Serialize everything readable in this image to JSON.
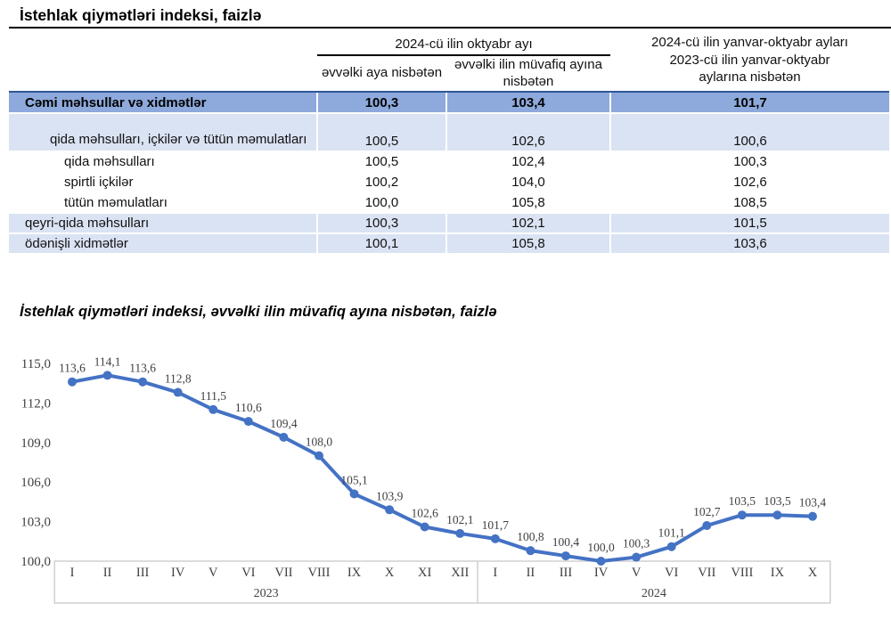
{
  "page": {
    "title": "İstehlak qiymətləri indeksi, faizlə"
  },
  "table": {
    "col_group_header": "2024-cü ilin oktyabr ayı",
    "col2_header": "əvvəlki aya nisbətən",
    "col3_header": "əvvəlki ilin müvafiq ayına nisbətən",
    "col4_header_lines": [
      "2024-cü ilin yanvar-oktyabr ayları",
      "2023-cü ilin yanvar-oktyabr",
      "aylarına nisbətən"
    ],
    "rows": [
      {
        "label": "Cəmi məhsullar və xidmətlər",
        "v1": "100,3",
        "v2": "103,4",
        "v3": "101,7"
      },
      {
        "label": "qida məhsulları, içkilər və tütün məmulatları",
        "v1": "100,5",
        "v2": "102,6",
        "v3": "100,6"
      },
      {
        "label": "qida məhsulları",
        "v1": "100,5",
        "v2": "102,4",
        "v3": "100,3"
      },
      {
        "label": "spirtli içkilər",
        "v1": "100,2",
        "v2": "104,0",
        "v3": "102,6"
      },
      {
        "label": "tütün məmulatları",
        "v1": "100,0",
        "v2": "105,8",
        "v3": "108,5"
      },
      {
        "label": "qeyri-qida məhsulları",
        "v1": "100,3",
        "v2": "102,1",
        "v3": "101,5"
      },
      {
        "label": "ödənişli xidmətlər",
        "v1": "100,1",
        "v2": "105,8",
        "v3": "103,6"
      }
    ]
  },
  "chart": {
    "title": "İstehlak qiymətləri indeksi, əvvəlki ilin müvafiq ayına nisbətən, faizlə"
  },
  "chart_data": {
    "type": "line",
    "title": "İstehlak qiymətləri indeksi, əvvəlki ilin müvafiq ayına nisbətən, faizlə",
    "x_groups": [
      {
        "year": "2023",
        "months": [
          "I",
          "II",
          "III",
          "IV",
          "V",
          "VI",
          "VII",
          "VIII",
          "IX",
          "X",
          "XI",
          "XII"
        ]
      },
      {
        "year": "2024",
        "months": [
          "I",
          "II",
          "III",
          "IV",
          "V",
          "VI",
          "VII",
          "VIII",
          "IX",
          "X"
        ]
      }
    ],
    "values": [
      113.6,
      114.1,
      113.6,
      112.8,
      111.5,
      110.6,
      109.4,
      108.0,
      105.1,
      103.9,
      102.6,
      102.1,
      101.7,
      100.8,
      100.4,
      100.0,
      100.3,
      101.1,
      102.7,
      103.5,
      103.5,
      103.4
    ],
    "ylim": [
      100.0,
      115.0
    ],
    "yticks": [
      100.0,
      103.0,
      106.0,
      109.0,
      112.0,
      115.0
    ],
    "decimal_separator": ",",
    "grid": false,
    "legend": false,
    "line_color": "#4472C4",
    "axis_box_color": "#C9C9C9",
    "text_color": "#3f3f3f"
  },
  "colors": {
    "total_row_bg": "#8EA9DB",
    "total_row_border": "#2F5597",
    "light_row_bg": "#DAE3F3",
    "line": "#4472C4"
  }
}
